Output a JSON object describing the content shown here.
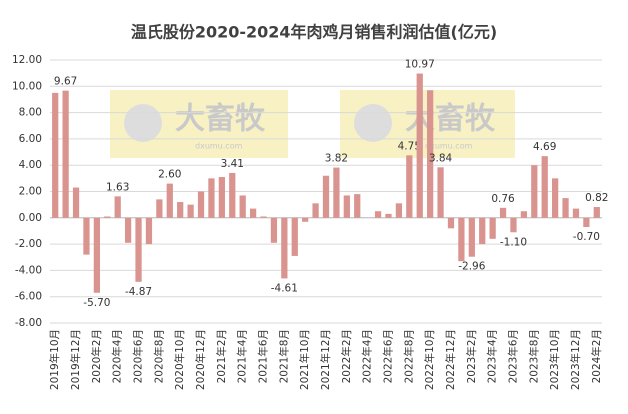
{
  "chart_data": {
    "type": "bar",
    "title": "温氏股份2020-2024年肉鸡月销售利润估值(亿元)",
    "watermark": {
      "text": "大畜牧",
      "url": "dxumu.com"
    },
    "categories": [
      "2019年10月",
      null,
      "2019年12月",
      null,
      "2020年2月",
      null,
      "2020年4月",
      null,
      "2020年6月",
      null,
      "2020年8月",
      null,
      "2020年10月",
      null,
      "2020年12月",
      null,
      "2021年2月",
      null,
      "2021年4月",
      null,
      "2021年6月",
      null,
      "2021年8月",
      null,
      "2021年10月",
      null,
      "2021年12月",
      null,
      "2022年2月",
      null,
      "2022年4月",
      null,
      "2022年6月",
      null,
      "2022年8月",
      null,
      "2022年10月",
      null,
      "2022年12月",
      null,
      "2023年2月",
      null,
      "2023年4月",
      null,
      "2023年6月",
      null,
      "2023年8月",
      null,
      "2023年10月",
      null,
      "2023年12月",
      null,
      "2024年2月"
    ],
    "values": [
      9.5,
      9.67,
      2.3,
      -2.8,
      -5.7,
      0.1,
      1.63,
      -1.9,
      -4.87,
      -2.0,
      1.4,
      2.6,
      1.2,
      1.0,
      2.0,
      3.0,
      3.1,
      3.41,
      1.7,
      0.7,
      0.1,
      -1.9,
      -4.61,
      -2.9,
      -0.3,
      1.1,
      3.2,
      3.82,
      1.7,
      1.8,
      0,
      0.5,
      0.3,
      1.1,
      4.75,
      10.97,
      9.7,
      3.84,
      -0.8,
      -3.3,
      -2.96,
      -2.0,
      -1.6,
      0.76,
      -1.1,
      0.5,
      4.0,
      4.69,
      3.0,
      1.5,
      0.7,
      -0.7,
      0.82
    ],
    "value_labels": [
      null,
      "9.67",
      null,
      null,
      "-5.70",
      null,
      "1.63",
      null,
      "-4.87",
      null,
      null,
      "2.60",
      null,
      null,
      null,
      null,
      null,
      "3.41",
      null,
      null,
      null,
      null,
      "-4.61",
      null,
      null,
      null,
      null,
      "3.82",
      null,
      null,
      null,
      null,
      null,
      null,
      "4.75",
      "10.97",
      null,
      "3.84",
      null,
      null,
      "-2.96",
      null,
      null,
      "0.76",
      "-1.10",
      null,
      null,
      "4.69",
      null,
      null,
      null,
      "-0.70",
      "0.82"
    ],
    "color": "#d9948f",
    "ylim": [
      -8,
      12
    ],
    "yticks": [
      {
        "value": -8,
        "label": "-8.00"
      },
      {
        "value": -6,
        "label": "-6.00"
      },
      {
        "value": -4,
        "label": "-4.00"
      },
      {
        "value": -2,
        "label": "-2.00"
      },
      {
        "value": 0,
        "label": "0.00"
      },
      {
        "value": 2,
        "label": "2.00"
      },
      {
        "value": 4,
        "label": "4.00"
      },
      {
        "value": 6,
        "label": "6.00"
      },
      {
        "value": 8,
        "label": "8.00"
      },
      {
        "value": 10,
        "label": "10.00"
      },
      {
        "value": 12,
        "label": "12.00"
      }
    ],
    "grid": true
  }
}
